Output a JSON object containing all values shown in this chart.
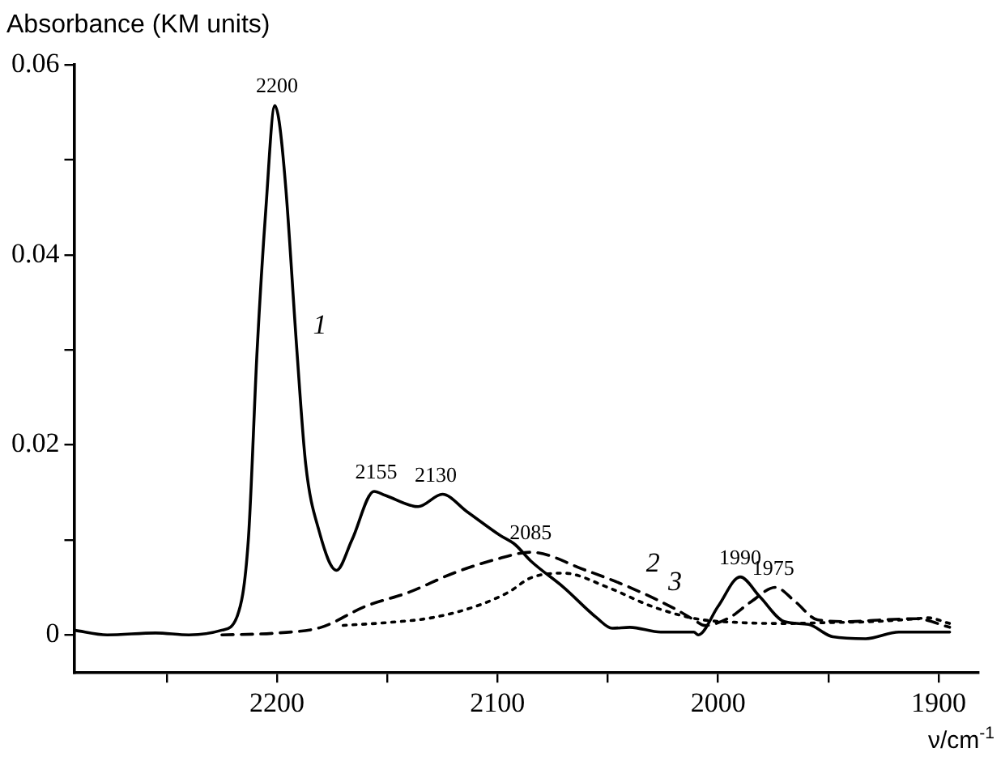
{
  "chart_data": {
    "type": "line",
    "xlabel": "ν/cm$^{-1}$",
    "ylabel": "Absorbance (KM units)",
    "xlim": [
      2292,
      1882
    ],
    "ylim": [
      -0.004,
      0.06
    ],
    "xticks": [
      {
        "value": 2250,
        "label": null
      },
      2200,
      {
        "value": 2150,
        "label": null
      },
      2100,
      {
        "value": 2050,
        "label": null
      },
      2000,
      {
        "value": 1950,
        "label": null
      },
      1900
    ],
    "yticks": [
      0,
      {
        "value": 0.01,
        "label": null
      },
      0.02,
      {
        "value": 0.03,
        "label": null
      },
      0.04,
      {
        "value": 0.05,
        "label": null
      },
      0.06
    ],
    "grid": false,
    "legend": false,
    "marker": "none",
    "series": [
      {
        "name": "1",
        "color": "#000000",
        "line_style": "solid",
        "x": [
          2292,
          2277,
          2255,
          2240,
          2225,
          2218,
          2213,
          2209,
          2205,
          2201,
          2199,
          2196,
          2191,
          2187,
          2181,
          2173,
          2166,
          2156,
          2151,
          2136,
          2125,
          2114,
          2099,
          2092,
          2085,
          2070,
          2055,
          2048,
          2040,
          2026,
          2011,
          2009,
          2000,
          1990,
          1981,
          1970,
          1959,
          1948,
          1933,
          1918,
          1895
        ],
        "values": [
          0.0005,
          0,
          0.0002,
          0,
          0.0005,
          0.002,
          0.01,
          0.03,
          0.045,
          0.0557,
          0.054,
          0.047,
          0.03,
          0.018,
          0.011,
          0.0068,
          0.01,
          0.0151,
          0.0147,
          0.0135,
          0.0148,
          0.013,
          0.0105,
          0.0095,
          0.0078,
          0.005,
          0.0018,
          0.0007,
          0.0008,
          0.0003,
          0.0003,
          0,
          0.003,
          0.0061,
          0.004,
          0.0014,
          0.0011,
          -0.0002,
          -0.0004,
          0.0003,
          0.0003
        ]
      },
      {
        "name": "2",
        "color": "#000000",
        "line_style": "dashed",
        "x": [
          2225,
          2200,
          2180,
          2160,
          2140,
          2120,
          2100,
          2085,
          2060,
          2040,
          2020,
          2011,
          2006,
          1995,
          1985,
          1974,
          1965,
          1955,
          1940,
          1925,
          1910,
          1895
        ],
        "values": [
          0,
          0.0002,
          0.0008,
          0.003,
          0.0045,
          0.0065,
          0.008,
          0.0087,
          0.0068,
          0.005,
          0.0028,
          0.0016,
          0.001,
          0.0018,
          0.0035,
          0.005,
          0.0035,
          0.0016,
          0.0014,
          0.0016,
          0.0017,
          0.0008
        ]
      },
      {
        "name": "3",
        "color": "#000000",
        "line_style": "dotted",
        "x": [
          2170,
          2150,
          2130,
          2110,
          2095,
          2085,
          2070,
          2050,
          2030,
          2010,
          1990,
          1970,
          1950,
          1930,
          1910,
          1905,
          1895
        ],
        "values": [
          0.001,
          0.0013,
          0.0018,
          0.003,
          0.0045,
          0.006,
          0.0065,
          0.005,
          0.003,
          0.0017,
          0.0013,
          0.0012,
          0.0013,
          0.0014,
          0.0017,
          0.0018,
          0.0012
        ]
      }
    ],
    "annotations": [
      {
        "text": "2200",
        "x": 2200,
        "y": 0.0557
      },
      {
        "text": "2155",
        "x": 2155,
        "y": 0.0151
      },
      {
        "text": "2130",
        "x": 2128,
        "y": 0.0148
      },
      {
        "text": "2085",
        "x": 2085,
        "y": 0.0087
      },
      {
        "text": "1990",
        "x": 1990,
        "y": 0.0061
      },
      {
        "text": "1975",
        "x": 1975,
        "y": 0.005
      }
    ]
  }
}
